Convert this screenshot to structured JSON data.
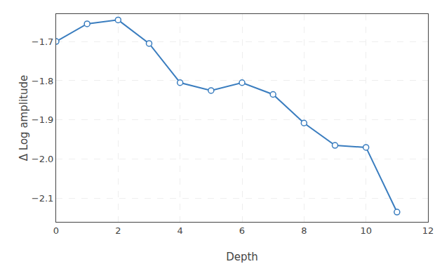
{
  "chart_data": {
    "type": "line",
    "x": [
      0,
      1,
      2,
      3,
      4,
      5,
      6,
      7,
      8,
      9,
      10,
      11
    ],
    "values": [
      -1.7,
      -1.655,
      -1.645,
      -1.705,
      -1.805,
      -1.825,
      -1.805,
      -1.835,
      -1.908,
      -1.965,
      -1.97,
      -2.135
    ],
    "color": "#3a7dbf",
    "marker": "circle",
    "xlabel": "Depth",
    "ylabel": "Δ Log amplitude",
    "xlim": [
      0,
      12
    ],
    "ylim": [
      -2.16,
      -1.63
    ],
    "xticks": [
      0,
      2,
      4,
      6,
      8,
      10,
      12
    ],
    "yticks": [
      {
        "value": -2.1,
        "label": "−2.1"
      },
      {
        "value": -2.0,
        "label": "−2.0"
      },
      {
        "value": -1.9,
        "label": "−1.9"
      },
      {
        "value": -1.8,
        "label": "−1.8"
      },
      {
        "value": -1.7,
        "label": "−1.7"
      }
    ],
    "grid": true
  }
}
